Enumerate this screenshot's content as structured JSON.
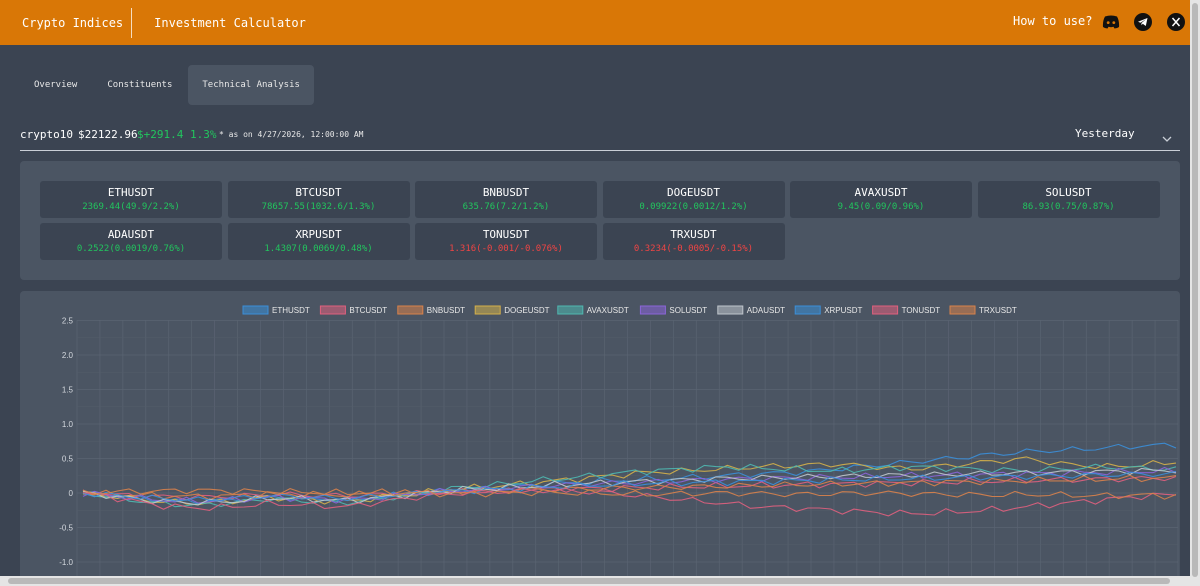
{
  "nav": {
    "brand": "Crypto Indices",
    "investment_calculator": "Investment Calculator",
    "how_to_use": "How to use?",
    "social_icons": [
      "discord-icon",
      "telegram-icon",
      "x-icon"
    ]
  },
  "tabs": [
    {
      "label": "Overview",
      "active": false
    },
    {
      "label": "Constituents",
      "active": false
    },
    {
      "label": "Technical Analysis",
      "active": true
    }
  ],
  "index": {
    "name": "crypto10",
    "value": "$22122.96",
    "change": "$+291.4",
    "change_pct": "1.3%",
    "as_of": "* as on 4/27/2026, 12:00:00 AM",
    "period": "Yesterday"
  },
  "colors": {
    "accent": "#d97706",
    "up": "#22c55e",
    "down": "#ef4444"
  },
  "tickers": [
    {
      "symbol": "ETHUSDT",
      "change": "2369.44(49.9/2.2%)",
      "direction": "up"
    },
    {
      "symbol": "BTCUSDT",
      "change": "78657.55(1032.6/1.3%)",
      "direction": "up"
    },
    {
      "symbol": "BNBUSDT",
      "change": "635.76(7.2/1.2%)",
      "direction": "up"
    },
    {
      "symbol": "DOGEUSDT",
      "change": "0.09922(0.0012/1.2%)",
      "direction": "up"
    },
    {
      "symbol": "AVAXUSDT",
      "change": "9.45(0.09/0.96%)",
      "direction": "up"
    },
    {
      "symbol": "SOLUSDT",
      "change": "86.93(0.75/0.87%)",
      "direction": "up"
    },
    {
      "symbol": "ADAUSDT",
      "change": "0.2522(0.0019/0.76%)",
      "direction": "up"
    },
    {
      "symbol": "XRPUSDT",
      "change": "1.4307(0.0069/0.48%)",
      "direction": "up"
    },
    {
      "symbol": "TONUSDT",
      "change": "1.316(-0.001/-0.076%)",
      "direction": "down"
    },
    {
      "symbol": "TRXUSDT",
      "change": "0.3234(-0.0005/-0.15%)",
      "direction": "down"
    }
  ],
  "chart_data": {
    "type": "line",
    "grid": true,
    "legend_position": "top-center",
    "yticks": [
      "2.5",
      "2.0",
      "1.5",
      "1.0",
      "0.5",
      "0",
      "-0.5",
      "-1.0"
    ],
    "ylim": [
      -1.0,
      2.5
    ],
    "n_points": 96,
    "series": [
      {
        "name": "ETHUSDT",
        "color": "#3b8fd9",
        "values": [
          0,
          -0.05,
          -0.1,
          -0.12,
          -0.1,
          -0.05,
          -0.08,
          -0.1,
          -0.05,
          0,
          0.05,
          0.08,
          0.12,
          0.15,
          0.18,
          0.2,
          0.22,
          0.25,
          0.28,
          0.3,
          0.35,
          0.4,
          0.45,
          0.5,
          0.55,
          0.6,
          0.62,
          0.65,
          0.68,
          0.7
        ]
      },
      {
        "name": "BTCUSDT",
        "color": "#e0607e",
        "values": [
          0,
          -0.03,
          -0.05,
          -0.06,
          -0.05,
          -0.02,
          -0.03,
          -0.04,
          -0.02,
          0,
          0.02,
          0.03,
          0.05,
          0.06,
          0.07,
          0.08,
          0.09,
          0.1,
          0.11,
          0.12,
          0.13,
          0.14,
          0.15,
          0.16,
          0.17,
          0.18,
          0.19,
          0.2,
          0.21,
          0.22
        ]
      },
      {
        "name": "BNBUSDT",
        "color": "#d9824b",
        "values": [
          0,
          -0.02,
          -0.04,
          -0.05,
          -0.04,
          -0.01,
          -0.02,
          -0.03,
          -0.01,
          0.01,
          0.02,
          0.03,
          0.05,
          0.06,
          0.07,
          0.08,
          0.09,
          0.1,
          0.11,
          0.12,
          0.13,
          0.14,
          0.15,
          0.16,
          0.17,
          0.18,
          0.19,
          0.2,
          0.21,
          0.22
        ]
      },
      {
        "name": "DOGEUSDT",
        "color": "#d4b04a",
        "values": [
          0,
          -0.06,
          -0.12,
          -0.15,
          -0.12,
          -0.06,
          -0.1,
          -0.12,
          -0.06,
          0,
          0.06,
          0.1,
          0.15,
          0.2,
          0.25,
          0.3,
          0.32,
          0.35,
          0.38,
          0.4,
          0.42,
          0.38,
          0.35,
          0.4,
          0.45,
          0.5,
          0.42,
          0.38,
          0.4,
          0.45
        ]
      },
      {
        "name": "AVAXUSDT",
        "color": "#4fb8b0",
        "values": [
          0,
          -0.08,
          -0.15,
          -0.18,
          -0.14,
          -0.08,
          -0.12,
          -0.14,
          -0.08,
          0,
          0.08,
          0.12,
          0.18,
          0.22,
          0.28,
          0.32,
          0.35,
          0.38,
          0.36,
          0.34,
          0.32,
          0.35,
          0.38,
          0.36,
          0.34,
          0.32,
          0.35,
          0.38,
          0.36,
          0.35
        ]
      },
      {
        "name": "SOLUSDT",
        "color": "#8b65d9",
        "values": [
          0,
          -0.05,
          -0.1,
          -0.12,
          -0.1,
          -0.06,
          -0.08,
          -0.1,
          -0.06,
          0,
          0.04,
          0.06,
          0.1,
          0.12,
          0.14,
          0.16,
          0.18,
          0.2,
          0.21,
          0.22,
          0.23,
          0.24,
          0.25,
          0.26,
          0.27,
          0.28,
          0.29,
          0.3,
          0.31,
          0.32
        ]
      },
      {
        "name": "ADAUSDT",
        "color": "#bfc5cc",
        "values": [
          0,
          -0.06,
          -0.12,
          -0.14,
          -0.12,
          -0.07,
          -0.09,
          -0.11,
          -0.06,
          0,
          0.05,
          0.07,
          0.1,
          0.13,
          0.15,
          0.17,
          0.19,
          0.21,
          0.22,
          0.23,
          0.24,
          0.25,
          0.26,
          0.27,
          0.28,
          0.29,
          0.3,
          0.31,
          0.32,
          0.33
        ]
      },
      {
        "name": "XRPUSDT",
        "color": "#3b8fd9",
        "values": [
          0,
          -0.04,
          -0.08,
          -0.1,
          -0.08,
          -0.04,
          -0.06,
          -0.08,
          -0.04,
          0,
          0.03,
          0.05,
          0.08,
          0.1,
          0.12,
          0.14,
          0.15,
          0.16,
          0.17,
          0.18,
          0.19,
          0.2,
          0.21,
          0.22,
          0.23,
          0.24,
          0.25,
          0.26,
          0.27,
          0.28
        ]
      },
      {
        "name": "TONUSDT",
        "color": "#e0607e",
        "values": [
          0,
          -0.08,
          -0.18,
          -0.22,
          -0.2,
          -0.15,
          -0.18,
          -0.2,
          -0.12,
          -0.05,
          0,
          0.02,
          0.04,
          0.03,
          0.0,
          -0.05,
          -0.1,
          -0.15,
          -0.2,
          -0.22,
          -0.25,
          -0.28,
          -0.3,
          -0.28,
          -0.25,
          -0.2,
          -0.15,
          -0.1,
          -0.05,
          -0.02
        ]
      },
      {
        "name": "TRXUSDT",
        "color": "#d9824b",
        "values": [
          0,
          0.02,
          0.03,
          0.04,
          0.03,
          0.02,
          0.01,
          0.0,
          0.01,
          0.0,
          -0.01,
          0.0,
          0.01,
          0.0,
          -0.01,
          -0.02,
          -0.01,
          0.0,
          -0.01,
          -0.02,
          -0.01,
          0.0,
          -0.01,
          -0.02,
          -0.03,
          -0.02,
          -0.03,
          -0.04,
          -0.03,
          -0.04
        ]
      }
    ]
  }
}
